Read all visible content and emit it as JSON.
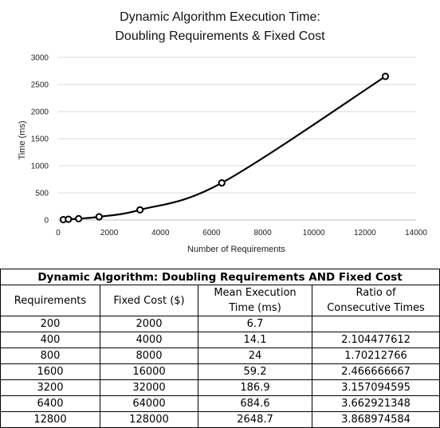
{
  "chart_data": {
    "type": "scatter",
    "title_lines": [
      "Dynamic Algorithm Execution Time:",
      "Doubling Requirements & Fixed Cost"
    ],
    "xlabel": "Number  of Requirements",
    "ylabel": "Time (ms)",
    "xlim": [
      0,
      14000
    ],
    "ylim": [
      0,
      3000
    ],
    "xticks": [
      "0",
      "2000",
      "4000",
      "6000",
      "8000",
      "10000",
      "12000",
      "14000"
    ],
    "yticks": [
      "0",
      "500",
      "1000",
      "1500",
      "2000",
      "2500",
      "3000"
    ],
    "grid": "horizontal",
    "smooth_line": true,
    "x": [
      200,
      400,
      800,
      1600,
      3200,
      6400,
      12800
    ],
    "y": [
      6.7,
      14.1,
      24,
      59.2,
      186.9,
      684.6,
      2648.7
    ],
    "marker_color": "#000000",
    "line_color": "#000000"
  },
  "table": {
    "caption": "Dynamic Algorithm: Doubling Requirements AND Fixed Cost",
    "headers": {
      "requirements": "Requirements",
      "fixed_cost": "Fixed Cost ($)",
      "mean_time_1": "Mean Execution",
      "mean_time_2": "Time (ms)",
      "ratio_1": "Ratio of",
      "ratio_2": "Consecutive Times"
    },
    "rows": [
      {
        "req": "200",
        "cost": "2000",
        "time": "6.7",
        "ratio": ""
      },
      {
        "req": "400",
        "cost": "4000",
        "time": "14.1",
        "ratio": "2.104477612"
      },
      {
        "req": "800",
        "cost": "8000",
        "time": "24",
        "ratio": "1.70212766"
      },
      {
        "req": "1600",
        "cost": "16000",
        "time": "59.2",
        "ratio": "2.466666667"
      },
      {
        "req": "3200",
        "cost": "32000",
        "time": "186.9",
        "ratio": "3.157094595"
      },
      {
        "req": "6400",
        "cost": "64000",
        "time": "684.6",
        "ratio": "3.662921348"
      },
      {
        "req": "12800",
        "cost": "128000",
        "time": "2648.7",
        "ratio": "3.868974584"
      }
    ]
  }
}
